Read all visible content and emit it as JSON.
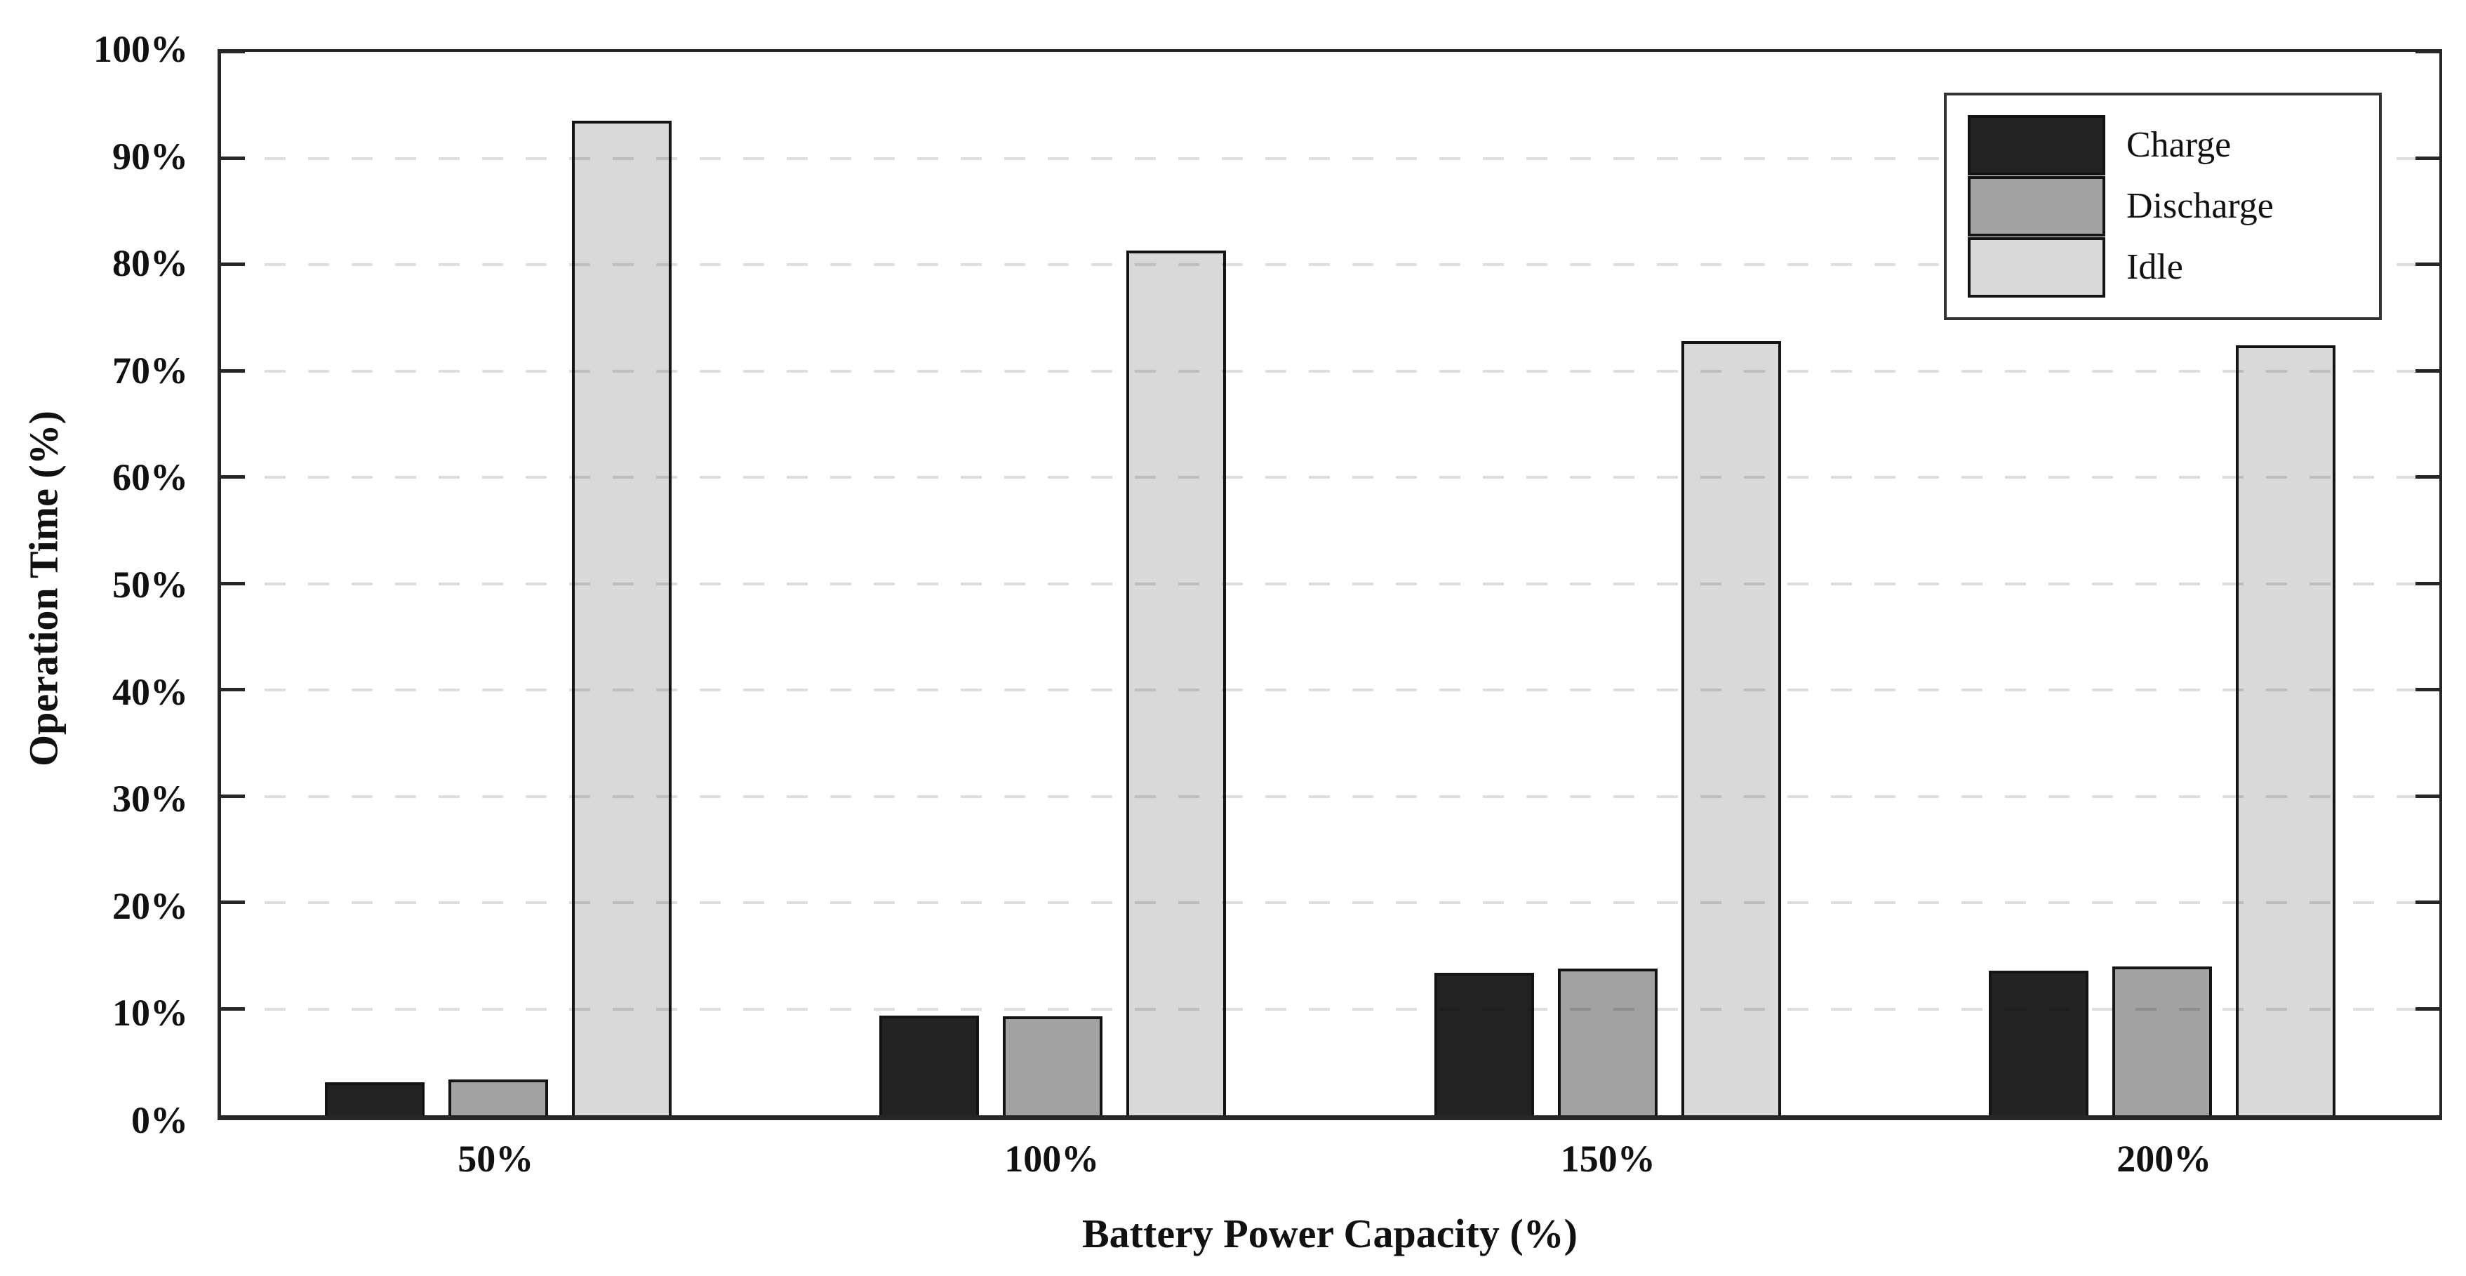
{
  "chart_data": {
    "type": "bar",
    "title": "",
    "categories": [
      "50%",
      "100%",
      "150%",
      "200%"
    ],
    "series": [
      {
        "name": "Charge",
        "color": "#232323",
        "values": [
          3.1,
          9.4,
          13.4,
          13.6
        ]
      },
      {
        "name": "Discharge",
        "color": "#a2a2a2",
        "values": [
          3.4,
          9.3,
          13.8,
          14.0
        ]
      },
      {
        "name": "Idle",
        "color": "#d9d9d9",
        "values": [
          93.5,
          81.3,
          72.8,
          72.4
        ]
      }
    ],
    "xlabel": "Battery Power Capacity (%)",
    "ylabel": "Operation Time (%)",
    "ylim": [
      0,
      100
    ],
    "ytick_step": 10,
    "ytick_labels": [
      "0%",
      "10%",
      "20%",
      "30%",
      "40%",
      "50%",
      "60%",
      "70%",
      "80%",
      "90%",
      "100%"
    ],
    "grid": "horizontal-dashed",
    "grid_color": "#e0e0e0",
    "axis_color": "#262626",
    "bar_edge_color": "#141414",
    "legend_position": "top-right",
    "legend_items": [
      "Charge",
      "Discharge",
      "Idle"
    ],
    "background": "#ffffff"
  }
}
